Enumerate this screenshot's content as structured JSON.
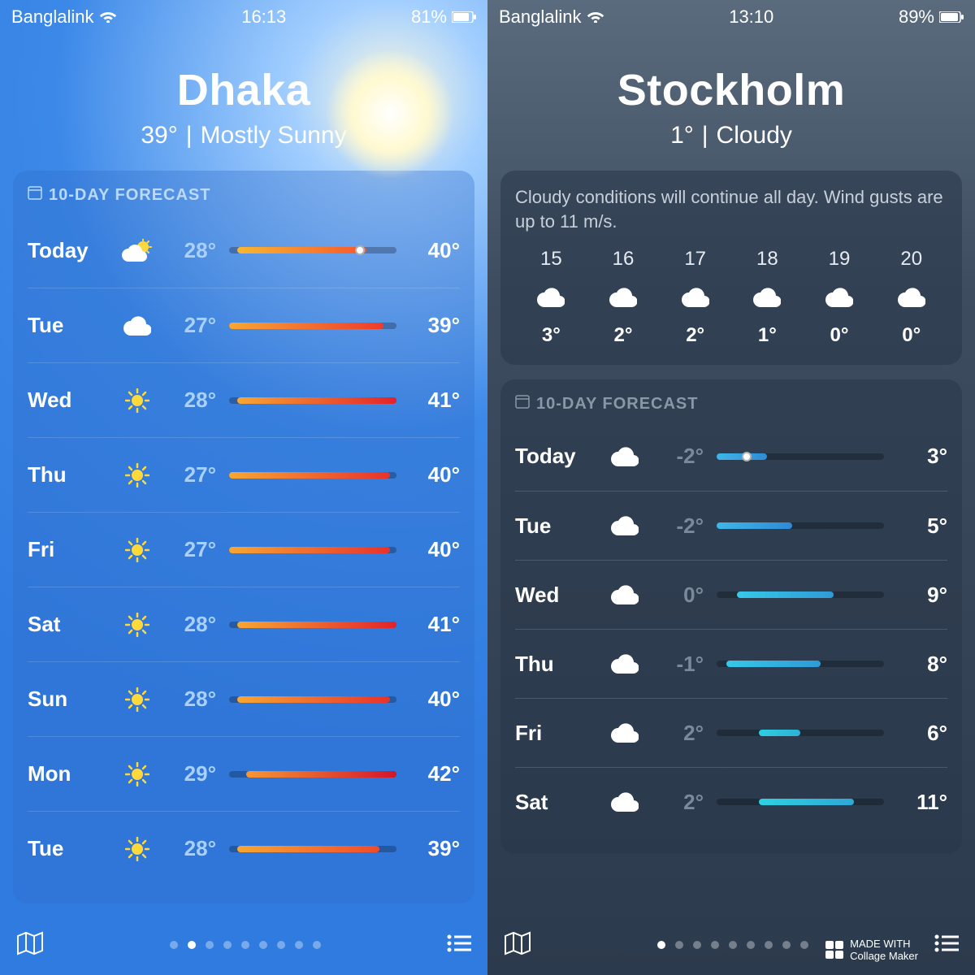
{
  "left": {
    "status": {
      "carrier": "Banglalink",
      "time": "16:13",
      "battery": "81%"
    },
    "city": {
      "name": "Dhaka",
      "temp": "39°",
      "condition": "Mostly Sunny"
    },
    "forecast_title": "10-DAY FORECAST",
    "bar_track": "rgba(0,0,0,0.25)",
    "forecast": [
      {
        "day": "Today",
        "icon": "partly",
        "lo": "28°",
        "hi": "40°",
        "start": 5,
        "end": 82,
        "grad": "linear-gradient(90deg,#f7b733,#f7572c)",
        "dot": 78
      },
      {
        "day": "Tue",
        "icon": "cloud",
        "lo": "27°",
        "hi": "39°",
        "start": 0,
        "end": 92,
        "grad": "linear-gradient(90deg,#f7a733,#ef3b2c)"
      },
      {
        "day": "Wed",
        "icon": "sun",
        "lo": "28°",
        "hi": "41°",
        "start": 5,
        "end": 100,
        "grad": "linear-gradient(90deg,#f7a733,#e2222c)"
      },
      {
        "day": "Thu",
        "icon": "sun",
        "lo": "27°",
        "hi": "40°",
        "start": 0,
        "end": 96,
        "grad": "linear-gradient(90deg,#f7a733,#e7322c)"
      },
      {
        "day": "Fri",
        "icon": "sun",
        "lo": "27°",
        "hi": "40°",
        "start": 0,
        "end": 96,
        "grad": "linear-gradient(90deg,#f7a733,#e7322c)"
      },
      {
        "day": "Sat",
        "icon": "sun",
        "lo": "28°",
        "hi": "41°",
        "start": 5,
        "end": 100,
        "grad": "linear-gradient(90deg,#f7a733,#e2222c)"
      },
      {
        "day": "Sun",
        "icon": "sun",
        "lo": "28°",
        "hi": "40°",
        "start": 5,
        "end": 96,
        "grad": "linear-gradient(90deg,#f7a733,#e7322c)"
      },
      {
        "day": "Mon",
        "icon": "sun",
        "lo": "29°",
        "hi": "42°",
        "start": 10,
        "end": 100,
        "grad": "linear-gradient(90deg,#f79733,#d4142c)"
      },
      {
        "day": "Tue",
        "icon": "sun",
        "lo": "28°",
        "hi": "39°",
        "start": 5,
        "end": 90,
        "grad": "linear-gradient(90deg,#f7a733,#ef4b2c)"
      }
    ],
    "pager": {
      "count": 9,
      "active": 1
    }
  },
  "right": {
    "status": {
      "carrier": "Banglalink",
      "time": "13:10",
      "battery": "89%"
    },
    "city": {
      "name": "Stockholm",
      "temp": "1°",
      "condition": "Cloudy"
    },
    "hourly_summary": "Cloudy conditions will continue all day. Wind gusts are up to 11 m/s.",
    "hourly": [
      {
        "h": "15",
        "t": "3°"
      },
      {
        "h": "16",
        "t": "2°"
      },
      {
        "h": "17",
        "t": "2°"
      },
      {
        "h": "18",
        "t": "1°"
      },
      {
        "h": "19",
        "t": "0°"
      },
      {
        "h": "20",
        "t": "0°"
      }
    ],
    "forecast_title": "10-DAY FORECAST",
    "forecast": [
      {
        "day": "Today",
        "icon": "cloud",
        "lo": "-2°",
        "hi": "3°",
        "start": 0,
        "end": 30,
        "grad": "linear-gradient(90deg,#3fb6e8,#2e8bd6)",
        "dot": 18,
        "dotstyle": "dots"
      },
      {
        "day": "Tue",
        "icon": "cloud",
        "lo": "-2°",
        "hi": "5°",
        "start": 0,
        "end": 45,
        "grad": "linear-gradient(90deg,#3fb6e8,#2e8bd6)"
      },
      {
        "day": "Wed",
        "icon": "cloud",
        "lo": "0°",
        "hi": "9°",
        "start": 12,
        "end": 70,
        "grad": "linear-gradient(90deg,#36c8e8,#2e9bd6)"
      },
      {
        "day": "Thu",
        "icon": "cloud",
        "lo": "-1°",
        "hi": "8°",
        "start": 6,
        "end": 62,
        "grad": "linear-gradient(90deg,#36c8e8,#2e9bd6)"
      },
      {
        "day": "Fri",
        "icon": "cloud",
        "lo": "2°",
        "hi": "6°",
        "start": 25,
        "end": 50,
        "grad": "linear-gradient(90deg,#2ed0e0,#2eb0d6)"
      },
      {
        "day": "Sat",
        "icon": "cloud",
        "lo": "2°",
        "hi": "11°",
        "start": 25,
        "end": 82,
        "grad": "linear-gradient(90deg,#2ed0e0,#2ea8d6)"
      }
    ],
    "pager": {
      "count": 9,
      "active": 0
    },
    "watermark": {
      "line1": "MADE WITH",
      "line2": "Collage Maker"
    }
  }
}
